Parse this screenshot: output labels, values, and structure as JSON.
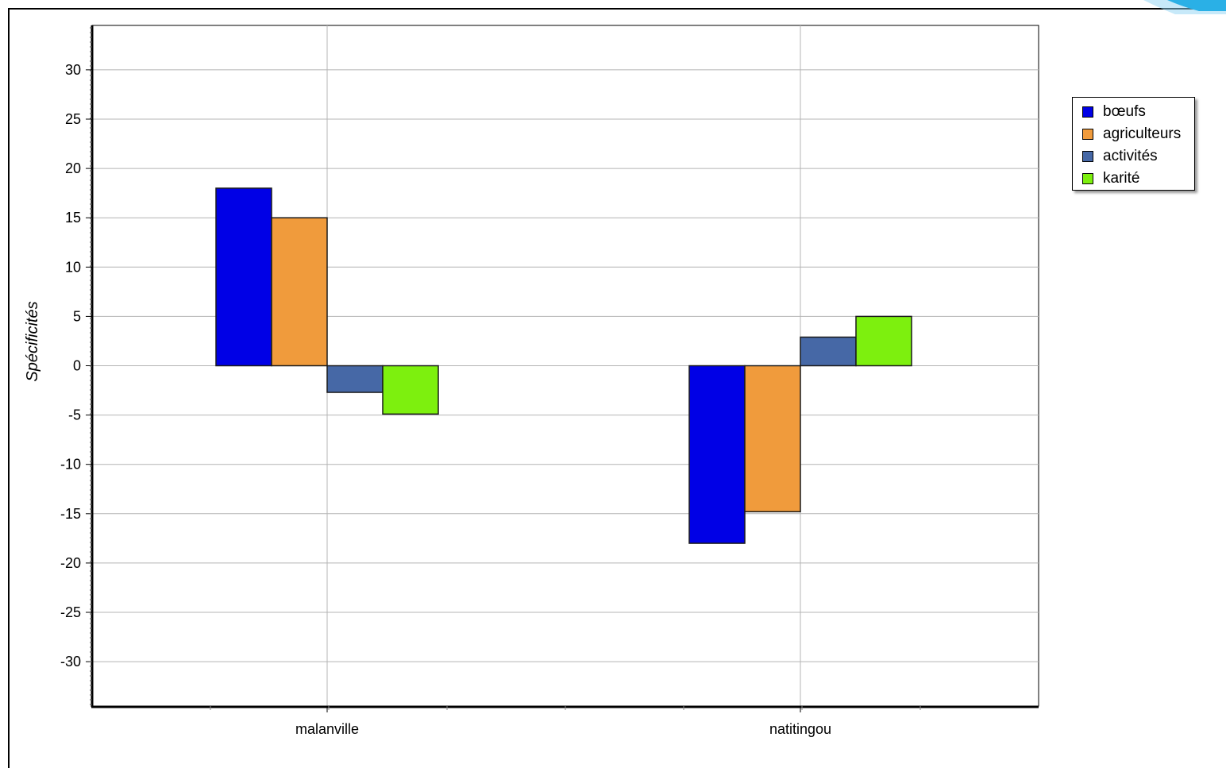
{
  "chart_data": {
    "type": "bar",
    "title": "",
    "xlabel": "",
    "ylabel": "Spécificités",
    "categories": [
      "malanville",
      "natitingou"
    ],
    "series": [
      {
        "name": "bœufs",
        "color": "#0000e6",
        "values": [
          18,
          -18
        ]
      },
      {
        "name": "agriculteurs",
        "color": "#f09b3c",
        "values": [
          15,
          -14.8
        ]
      },
      {
        "name": "activités",
        "color": "#4668a6",
        "values": [
          -2.7,
          2.9
        ]
      },
      {
        "name": "karité",
        "color": "#7df00e",
        "values": [
          -4.9,
          5
        ]
      }
    ],
    "ylim": [
      -34.5,
      34.5
    ],
    "yticks": [
      30,
      25,
      20,
      15,
      10,
      5,
      0,
      -5,
      -10,
      -15,
      -20,
      -25,
      -30
    ],
    "ytick_labels": [
      "30",
      "25",
      "20",
      "15",
      "10",
      "5",
      "0",
      "-5",
      "-10",
      "-15",
      "-20",
      "-25",
      "-30"
    ],
    "grid": true,
    "legend_position": "right"
  }
}
